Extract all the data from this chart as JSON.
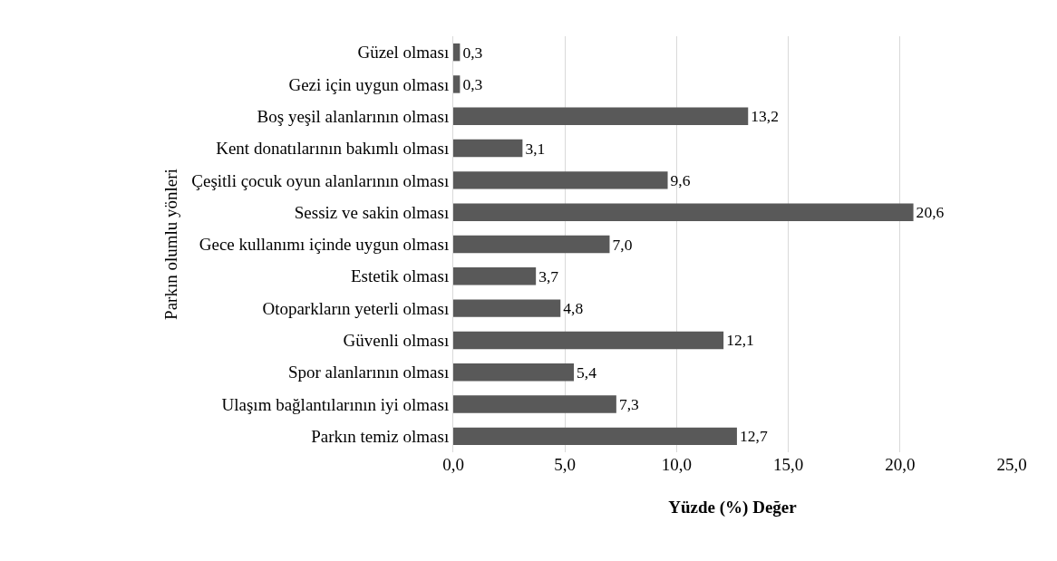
{
  "chart_data": {
    "type": "bar",
    "orientation": "horizontal",
    "xlabel": "Yüzde (%) Değer",
    "ylabel": "Parkın olumlu yönleri",
    "categories": [
      "Güzel olması",
      "Gezi için uygun olması",
      "Boş yeşil alanlarının olması",
      "Kent donatılarının bakımlı olması",
      "Çeşitli çocuk oyun alanlarının olması",
      "Sessiz ve sakin olması",
      "Gece kullanımı içinde uygun olması",
      "Estetik olması",
      "Otoparkların yeterli olması",
      "Güvenli olması",
      "Spor alanlarının olması",
      "Ulaşım bağlantılarının iyi olması",
      "Parkın temiz olması"
    ],
    "values": [
      0.3,
      0.3,
      13.2,
      3.1,
      9.6,
      20.6,
      7.0,
      3.7,
      4.8,
      12.1,
      5.4,
      7.3,
      12.7
    ],
    "value_labels": [
      "0,3",
      "0,3",
      "13,2",
      "3,1",
      "9,6",
      "20,6",
      "7,0",
      "3,7",
      "4,8",
      "12,1",
      "5,4",
      "7,3",
      "12,7"
    ],
    "color": "#595959",
    "xlim": [
      0,
      25
    ],
    "xticks": [
      {
        "value": 0,
        "label": "0,0"
      },
      {
        "value": 5,
        "label": "5,0"
      },
      {
        "value": 10,
        "label": "10,0"
      },
      {
        "value": 15,
        "label": "15,0"
      },
      {
        "value": 20,
        "label": "20,0"
      },
      {
        "value": 25,
        "label": "25,0"
      }
    ],
    "grid": "x",
    "legend": false
  }
}
